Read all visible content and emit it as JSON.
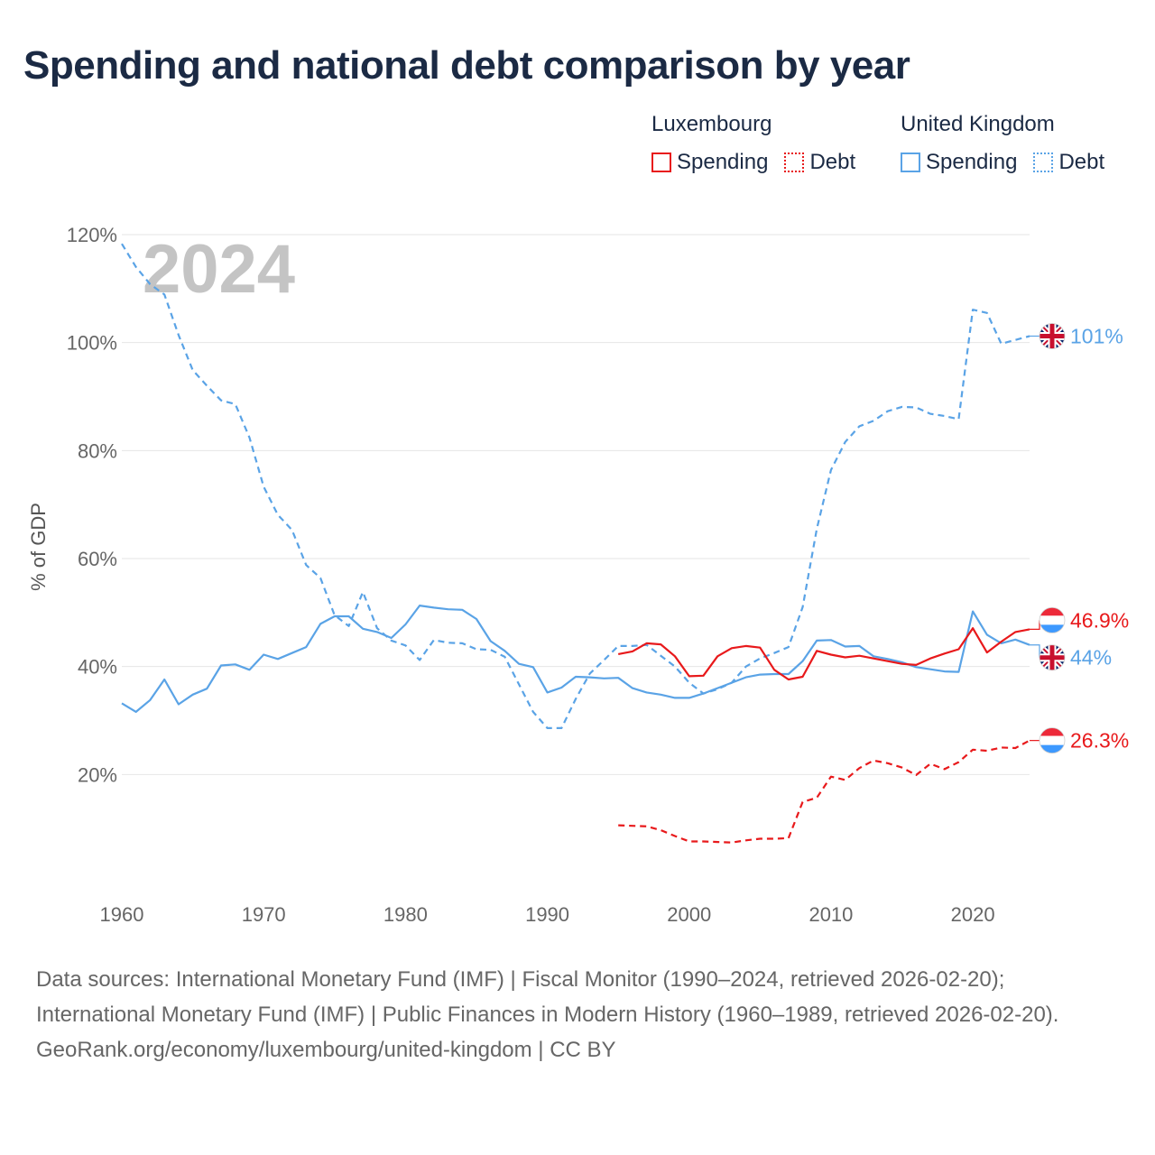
{
  "title": "Spending and national debt comparison by year",
  "legend": {
    "groups": [
      {
        "name": "Luxembourg",
        "color": "#e8191b",
        "items": [
          {
            "label": "Spending",
            "style": "solid"
          },
          {
            "label": "Debt",
            "style": "dotted"
          }
        ]
      },
      {
        "name": "United Kingdom",
        "color": "#5aa3e6",
        "items": [
          {
            "label": "Spending",
            "style": "solid"
          },
          {
            "label": "Debt",
            "style": "dotted"
          }
        ]
      }
    ]
  },
  "year_label": "2024",
  "end_labels": {
    "uk_debt": "101%",
    "lux_spending": "46.9%",
    "uk_spending": "44%",
    "lux_debt": "26.3%"
  },
  "source": {
    "line1": "Data sources: International Monetary Fund (IMF) | Fiscal Monitor (1990–2024, retrieved 2026-02-20); International Monetary Fund (IMF) | Public Finances in Modern History (1960–1989, retrieved 2026-02-20).",
    "line2": "GeoRank.org/economy/luxembourg/united-kingdom | CC BY"
  },
  "chart_data": {
    "type": "line",
    "title": "Spending and national debt comparison by year",
    "xlabel": "",
    "ylabel": "% of GDP",
    "xlim": [
      1960,
      2024
    ],
    "ylim": [
      0,
      120
    ],
    "x_ticks": [
      1960,
      1970,
      1980,
      1990,
      2000,
      2010,
      2020
    ],
    "x_tick_labels": [
      "1960",
      "1970",
      "1980",
      "1990",
      "2000",
      "2010",
      "2020"
    ],
    "y_ticks": [
      20,
      40,
      60,
      80,
      100,
      120
    ],
    "y_tick_labels": [
      "20%",
      "40%",
      "60%",
      "80%",
      "100%",
      "120%"
    ],
    "grid": true,
    "series": [
      {
        "name": "United Kingdom Spending",
        "color": "#5aa3e6",
        "dash": "solid",
        "start": 1960,
        "values": [
          33.2,
          31.6,
          33.8,
          37.6,
          33.0,
          34.8,
          35.9,
          40.2,
          40.4,
          39.4,
          42.2,
          41.4,
          42.5,
          43.6,
          47.9,
          49.3,
          49.3,
          47.0,
          46.4,
          45.3,
          47.8,
          51.3,
          50.9,
          50.6,
          50.5,
          48.8,
          44.7,
          42.9,
          40.5,
          39.9,
          35.2,
          36.1,
          38.1,
          38.0,
          37.8,
          37.9,
          36.0,
          35.2,
          34.8,
          34.2,
          34.2,
          35.0,
          36.0,
          37.0,
          38.0,
          38.5,
          38.6,
          38.6,
          41.0,
          44.8,
          44.9,
          43.7,
          43.8,
          41.9,
          41.4,
          40.8,
          39.9,
          39.5,
          39.1,
          39.0,
          50.2,
          45.9,
          44.3,
          45.0,
          44.0
        ]
      },
      {
        "name": "United Kingdom Debt",
        "color": "#5aa3e6",
        "dash": "dashed",
        "start": 1960,
        "values": [
          118.3,
          114.0,
          110.8,
          108.9,
          101.4,
          94.9,
          92.0,
          89.3,
          88.6,
          82.4,
          73.3,
          68.1,
          65.3,
          58.8,
          56.4,
          49.5,
          47.5,
          53.8,
          47.1,
          44.8,
          43.9,
          41.2,
          44.9,
          44.4,
          44.3,
          43.2,
          43.1,
          41.8,
          36.7,
          31.6,
          28.6,
          28.6,
          34.0,
          38.7,
          41.2,
          43.8,
          43.8,
          44.0,
          42.0,
          40.0,
          37.0,
          35.0,
          35.8,
          37.0,
          40.0,
          41.5,
          42.5,
          43.6,
          51.0,
          65.5,
          76.4,
          81.6,
          84.5,
          85.5,
          87.3,
          88.1,
          88.0,
          86.8,
          86.4,
          85.8,
          106.1,
          105.5,
          99.8,
          100.5,
          101.2
        ]
      },
      {
        "name": "Luxembourg Spending",
        "color": "#e8191b",
        "dash": "solid",
        "start": 1995,
        "values": [
          42.3,
          42.8,
          44.3,
          44.1,
          41.9,
          38.2,
          38.3,
          41.9,
          43.4,
          43.8,
          43.5,
          39.4,
          37.6,
          38.1,
          42.9,
          42.2,
          41.7,
          42.0,
          41.5,
          41.0,
          40.5,
          40.3,
          41.5,
          42.4,
          43.2,
          47.1,
          42.6,
          44.6,
          46.4,
          46.9
        ]
      },
      {
        "name": "Luxembourg Debt",
        "color": "#e8191b",
        "dash": "dashed",
        "start": 1995,
        "values": [
          10.6,
          10.5,
          10.4,
          9.7,
          8.6,
          7.6,
          7.6,
          7.5,
          7.4,
          7.8,
          8.1,
          8.1,
          8.2,
          14.9,
          15.7,
          19.6,
          19.0,
          21.2,
          22.6,
          22.1,
          21.3,
          19.9,
          22.0,
          21.0,
          22.3,
          24.6,
          24.4,
          25.0,
          24.9,
          26.3
        ]
      }
    ]
  }
}
